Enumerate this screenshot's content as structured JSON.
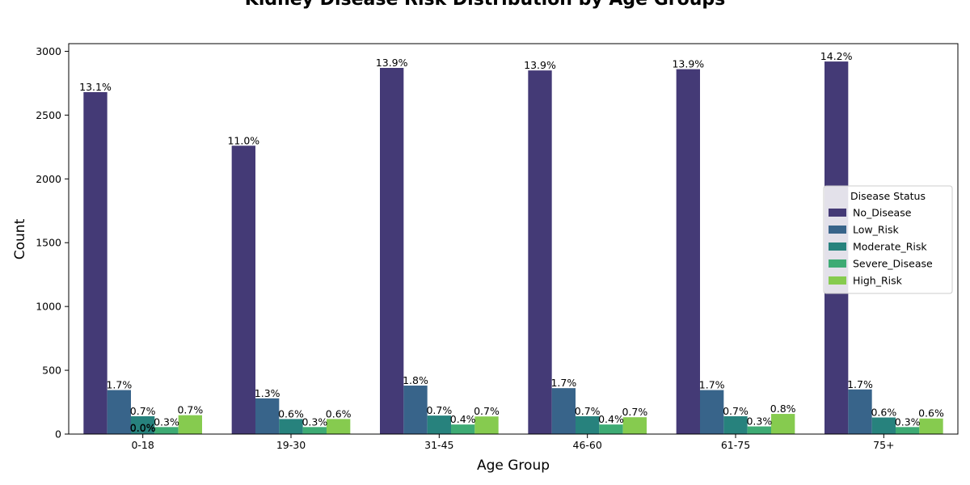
{
  "chart_data": {
    "type": "bar",
    "title": "Kidney Disease Risk Distribution by Age Groups",
    "xlabel": "Age Group",
    "ylabel": "Count",
    "ylim": [
      0,
      3060
    ],
    "yticks": [
      0,
      500,
      1000,
      1500,
      2000,
      2500,
      3000
    ],
    "categories": [
      "0-18",
      "19-30",
      "31-45",
      "46-60",
      "61-75",
      "75+"
    ],
    "legend": {
      "title": "Disease Status",
      "placement": "center-right"
    },
    "series": [
      {
        "name": "No_Disease",
        "color": "#443a76",
        "values": [
          2680,
          2260,
          2870,
          2850,
          2860,
          2920
        ],
        "labels": [
          "13.1%",
          "11.0%",
          "13.9%",
          "13.9%",
          "13.9%",
          "14.2%"
        ]
      },
      {
        "name": "Low_Risk",
        "color": "#38648a",
        "values": [
          345,
          280,
          380,
          360,
          345,
          350
        ],
        "labels": [
          "1.7%",
          "1.3%",
          "1.8%",
          "1.7%",
          "1.7%",
          "1.7%"
        ]
      },
      {
        "name": "Moderate_Risk",
        "color": "#27827d",
        "values": [
          140,
          118,
          145,
          140,
          140,
          130
        ],
        "labels": [
          "0.7%",
          "0.6%",
          "0.7%",
          "0.7%",
          "0.7%",
          "0.6%"
        ]
      },
      {
        "name": "Severe_Disease",
        "color": "#3eab74",
        "values": [
          55,
          55,
          75,
          75,
          60,
          55
        ],
        "labels": [
          "0.3%",
          "0.3%",
          "0.4%",
          "0.4%",
          "0.3%",
          "0.3%"
        ]
      },
      {
        "name": "High_Risk",
        "color": "#86cb4f",
        "values": [
          148,
          118,
          138,
          132,
          158,
          122
        ],
        "labels": [
          "0.7%",
          "0.6%",
          "0.7%",
          "0.7%",
          "0.8%",
          "0.6%"
        ]
      }
    ],
    "extra_labels": [
      {
        "category": "0-18",
        "text": "0.0%"
      },
      {
        "category": "0-18",
        "text": "0.0%"
      }
    ]
  }
}
